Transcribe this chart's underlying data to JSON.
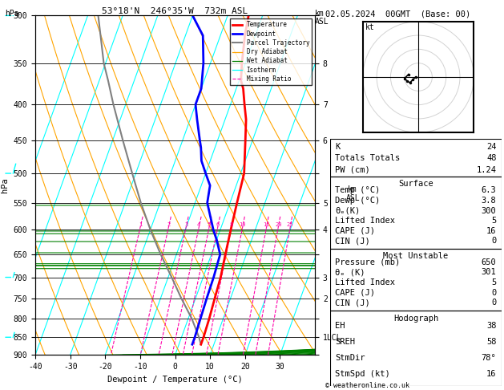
{
  "title_left": "53°18'N  246°35'W  732m ASL",
  "title_right": "02.05.2024  00GMT  (Base: 00)",
  "xlabel": "Dewpoint / Temperature (°C)",
  "ylabel_left": "hPa",
  "background_color": "white",
  "isotherm_color": "cyan",
  "dry_adiabat_color": "orange",
  "wet_adiabat_color": "green",
  "mixing_ratio_color": "#ff00aa",
  "temp_line_color": "red",
  "dewpoint_line_color": "blue",
  "parcel_color": "gray",
  "pressure_levels": [
    300,
    350,
    400,
    450,
    500,
    550,
    600,
    650,
    700,
    750,
    800,
    850,
    900
  ],
  "temp_ticks": [
    -40,
    -30,
    -20,
    -10,
    0,
    10,
    20,
    30
  ],
  "km_labels": [
    "",
    "8",
    "7",
    "6",
    "",
    "5",
    "4",
    "",
    "3",
    "2",
    "",
    "1LCL",
    ""
  ],
  "skew_factor": 35,
  "temperature_data": {
    "pressure": [
      870,
      850,
      800,
      750,
      700,
      650,
      600,
      550,
      500,
      450,
      420,
      400,
      380,
      370,
      350,
      320,
      300
    ],
    "temperature": [
      6.3,
      6.3,
      6.0,
      5.5,
      5.0,
      4.0,
      3.0,
      2.0,
      1.0,
      -2.0,
      -4.0,
      -6.0,
      -8.0,
      -9.5,
      -11.0,
      -13.0,
      -14.0
    ]
  },
  "dewpoint_data": {
    "pressure": [
      870,
      850,
      800,
      750,
      700,
      650,
      620,
      600,
      550,
      520,
      500,
      480,
      460,
      450,
      420,
      400,
      380,
      350,
      320,
      300
    ],
    "dewpoint": [
      3.8,
      3.8,
      3.5,
      3.2,
      3.0,
      2.5,
      0.0,
      -2.0,
      -6.5,
      -7.5,
      -10.0,
      -12.5,
      -14.0,
      -15.0,
      -18.0,
      -20.0,
      -20.0,
      -22.0,
      -25.0,
      -30.0
    ]
  },
  "parcel_data": {
    "pressure": [
      870,
      850,
      800,
      750,
      700,
      650,
      600,
      550,
      500,
      450,
      400,
      370,
      350,
      300
    ],
    "temperature": [
      6.3,
      5.0,
      1.0,
      -4.0,
      -9.0,
      -14.5,
      -20.0,
      -25.5,
      -31.0,
      -37.0,
      -43.5,
      -47.5,
      -50.5,
      -57.0
    ]
  },
  "mixing_ratio_lines": [
    1,
    2,
    3,
    4,
    5,
    6,
    8,
    10,
    16,
    20,
    25
  ],
  "mixing_ratio_labels": [
    "1",
    "2",
    "3",
    "4",
    "5",
    "6",
    "8",
    "10",
    "16",
    "20",
    "25"
  ],
  "stats": {
    "K": 24,
    "Totals_Totals": 48,
    "PW_cm": 1.24,
    "Surface_Temp": 6.3,
    "Surface_Dewp": 3.8,
    "Surface_theta_e": 300,
    "Surface_LI": 5,
    "Surface_CAPE": 16,
    "Surface_CIN": 0,
    "MU_Pressure": 650,
    "MU_theta_e": 301,
    "MU_LI": 5,
    "MU_CAPE": 0,
    "MU_CIN": 0,
    "Hodo_EH": 38,
    "Hodo_SREH": 58,
    "Hodo_StmDir": 78,
    "Hodo_StmSpd": 16
  },
  "legend_items": [
    {
      "label": "Temperature",
      "color": "red",
      "style": "-",
      "lw": 2.0
    },
    {
      "label": "Dewpoint",
      "color": "blue",
      "style": "-",
      "lw": 2.0
    },
    {
      "label": "Parcel Trajectory",
      "color": "gray",
      "style": "-",
      "lw": 1.5
    },
    {
      "label": "Dry Adiabat",
      "color": "orange",
      "style": "-",
      "lw": 0.9
    },
    {
      "label": "Wet Adiabat",
      "color": "green",
      "style": "-",
      "lw": 0.9
    },
    {
      "label": "Isotherm",
      "color": "cyan",
      "style": "-",
      "lw": 0.9
    },
    {
      "label": "Mixing Ratio",
      "color": "#ff00aa",
      "style": "--",
      "lw": 0.8
    }
  ],
  "hodo_trace_u": [
    -2,
    -4,
    -6,
    -8,
    -10,
    -7
  ],
  "hodo_trace_v": [
    0,
    -2,
    -4,
    -3,
    -1,
    2
  ],
  "hodo_storm_u": [
    -7,
    -5
  ],
  "hodo_storm_v": [
    -2,
    1
  ]
}
